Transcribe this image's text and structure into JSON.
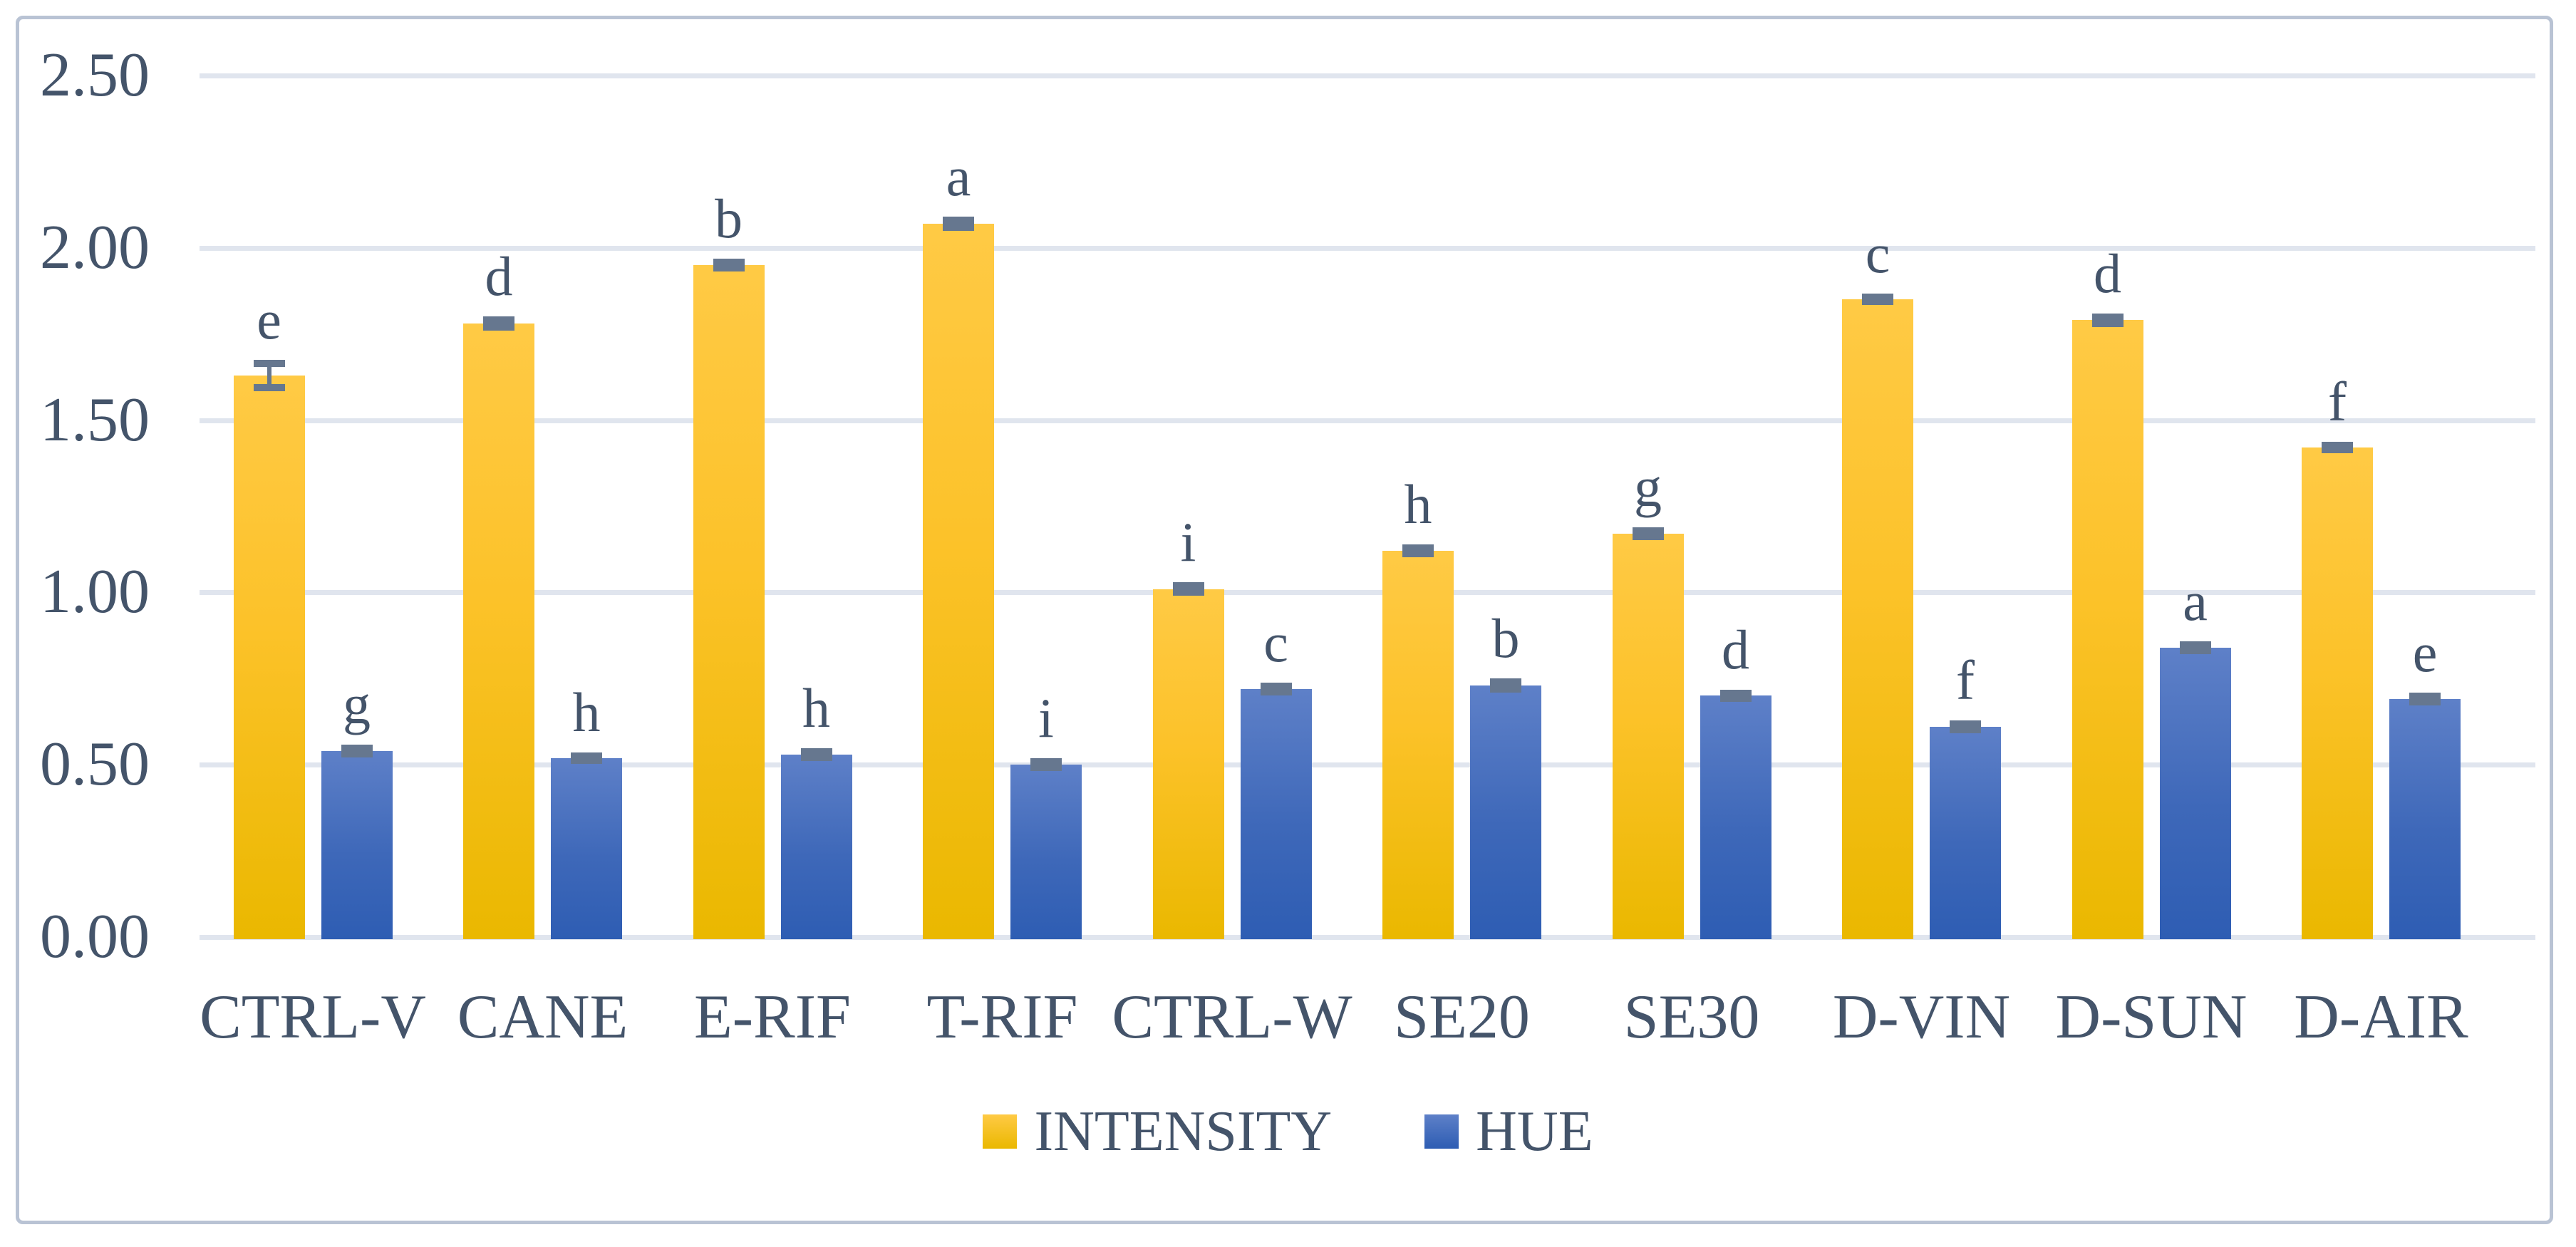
{
  "figure": {
    "background": "#FFFFFF",
    "border_color": "#B9C3D4"
  },
  "chart_data": {
    "type": "bar",
    "title": "",
    "xlabel": "",
    "ylabel": "",
    "categories": [
      "CTRL-V",
      "CANE",
      "E-RIF",
      "T-RIF",
      "CTRL-W",
      "SE20",
      "SE30",
      "D-VIN",
      "D-SUN",
      "D-AIR"
    ],
    "series": [
      {
        "name": "INTENSITY",
        "color_top": "#FFCA45",
        "color_bottom": "#EAB800",
        "values": [
          1.63,
          1.78,
          1.95,
          2.07,
          1.01,
          1.12,
          1.17,
          1.85,
          1.79,
          1.42
        ],
        "errors": [
          0.035,
          0.01,
          0.008,
          0.01,
          0.01,
          0.008,
          0.008,
          0.006,
          0.01,
          0.006
        ],
        "sig_letters": [
          "e",
          "d",
          "b",
          "a",
          "i",
          "h",
          "g",
          "c",
          "d",
          "f"
        ]
      },
      {
        "name": "HUE",
        "color_top": "#5E80C8",
        "color_bottom": "#2E5DB3",
        "values": [
          0.54,
          0.52,
          0.53,
          0.5,
          0.72,
          0.73,
          0.7,
          0.61,
          0.84,
          0.69
        ],
        "errors": [
          0.008,
          0.006,
          0.008,
          0.008,
          0.008,
          0.01,
          0.008,
          0.008,
          0.008,
          0.008
        ],
        "sig_letters": [
          "g",
          "h",
          "h",
          "i",
          "c",
          "b",
          "d",
          "f",
          "a",
          "e"
        ]
      }
    ],
    "ylim": [
      0,
      2.5
    ],
    "yticks": [
      {
        "value": 0.0,
        "label": "0.00"
      },
      {
        "value": 0.5,
        "label": "0.50"
      },
      {
        "value": 1.0,
        "label": "1.00"
      },
      {
        "value": 1.5,
        "label": "1.50"
      },
      {
        "value": 2.0,
        "label": "2.00"
      },
      {
        "value": 2.5,
        "label": "2.50"
      }
    ],
    "grid": true,
    "legend_position": "bottom",
    "colors": {
      "text": "#44546A",
      "gridline": "#E0E5EE",
      "error_bar": "#66778F"
    }
  }
}
